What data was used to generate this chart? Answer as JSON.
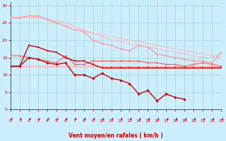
{
  "background_color": "#cceeff",
  "grid_color": "#aadddd",
  "xlabel": "Vent moyen/en rafales ( km/h )",
  "xlabel_color": "#cc0000",
  "tick_color": "#cc0000",
  "arrow_color": "#cc0000",
  "ylim": [
    0,
    31
  ],
  "xlim": [
    0,
    23
  ],
  "yticks": [
    0,
    5,
    10,
    15,
    20,
    25,
    30
  ],
  "xticks": [
    0,
    1,
    2,
    3,
    4,
    5,
    6,
    7,
    8,
    9,
    10,
    11,
    12,
    13,
    14,
    15,
    16,
    17,
    18,
    19,
    20,
    21,
    22,
    23
  ],
  "lines": [
    {
      "x": [
        0,
        1,
        2,
        3,
        4,
        5,
        6,
        7,
        8,
        9,
        10,
        11,
        12,
        13,
        14,
        15,
        16,
        17,
        18,
        19,
        20,
        21,
        22,
        23
      ],
      "y": [
        26.5,
        26.5,
        26.5,
        26.5,
        26,
        25.5,
        25,
        24,
        23,
        22,
        21.5,
        21,
        20.5,
        20,
        19.5,
        19,
        18.5,
        18,
        17.5,
        17,
        16.5,
        16,
        15.5,
        15
      ],
      "color": "#ffbbbb",
      "lw": 0.8,
      "marker": null
    },
    {
      "x": [
        0,
        1,
        2,
        3,
        4,
        5,
        6,
        7,
        8,
        9,
        10,
        11,
        12,
        13,
        14,
        15,
        16,
        17,
        18,
        19,
        20,
        21,
        22,
        23
      ],
      "y": [
        26.5,
        26.5,
        26.5,
        26.5,
        26,
        25.5,
        25,
        24,
        22.5,
        22,
        21,
        20,
        19.5,
        19,
        18.5,
        18,
        17.5,
        17,
        16.5,
        16,
        15.5,
        15,
        15,
        16.5
      ],
      "color": "#ffbbbb",
      "lw": 0.8,
      "marker": null
    },
    {
      "x": [
        0,
        1,
        2,
        3,
        4,
        5,
        6,
        7,
        8,
        9,
        10,
        11,
        12,
        13,
        14,
        15,
        16,
        17,
        18,
        19,
        20,
        21,
        22,
        23
      ],
      "y": [
        26.5,
        26.5,
        27,
        27,
        26,
        25,
        24,
        23,
        22.5,
        20,
        19,
        18.5,
        17.5,
        17,
        18.5,
        18,
        16,
        15.5,
        15,
        14.5,
        14,
        14,
        13.5,
        16.5
      ],
      "color": "#ff9999",
      "lw": 0.9,
      "marker": "D",
      "ms": 1.8
    },
    {
      "x": [
        0,
        1,
        2,
        3,
        4,
        5,
        6,
        7,
        8,
        9,
        10,
        11,
        12,
        13,
        14,
        15,
        16,
        17,
        18,
        19,
        20,
        21,
        22,
        23
      ],
      "y": [
        12.5,
        12.5,
        12.5,
        12.5,
        12.5,
        12.5,
        12.5,
        12.5,
        12.5,
        12.5,
        12.5,
        12.5,
        12.5,
        12.5,
        12.5,
        12.5,
        12.5,
        12.5,
        12.5,
        12.5,
        12.5,
        12.5,
        12.5,
        12.5
      ],
      "color": "#ffaaaa",
      "lw": 0.8,
      "marker": null
    },
    {
      "x": [
        0,
        1,
        2,
        3,
        4,
        5,
        6,
        7,
        8,
        9,
        10,
        11,
        12,
        13,
        14,
        15,
        16,
        17,
        18,
        19,
        20,
        21,
        22,
        23
      ],
      "y": [
        15.5,
        15.5,
        15,
        14.5,
        14,
        13.5,
        15.5,
        13,
        13,
        14,
        14,
        14,
        14,
        14,
        14,
        13.5,
        13.5,
        13,
        13,
        12.5,
        13,
        13.5,
        13,
        12.5
      ],
      "color": "#ff6666",
      "lw": 0.9,
      "marker": "D",
      "ms": 1.8
    },
    {
      "x": [
        0,
        1,
        2,
        3,
        4,
        5,
        6,
        7,
        8,
        9,
        10,
        11,
        12,
        13,
        14,
        15,
        16,
        17,
        18,
        19,
        20,
        21,
        22,
        23
      ],
      "y": [
        12.5,
        12.5,
        18.5,
        18,
        17,
        16.5,
        15,
        14,
        14,
        13,
        12,
        12,
        12,
        12,
        12,
        12,
        12,
        12,
        12,
        12,
        12,
        12,
        12,
        12
      ],
      "color": "#cc0000",
      "lw": 1.0,
      "marker": "s",
      "ms": 1.8
    },
    {
      "x": [
        0,
        1,
        2,
        3,
        4,
        5,
        6,
        7,
        8,
        9,
        10,
        11,
        12,
        13,
        14,
        15,
        16,
        17,
        18,
        19
      ],
      "y": [
        12.5,
        12.5,
        15,
        14.5,
        13.5,
        13,
        13.5,
        10,
        10,
        9,
        10.5,
        9,
        8.5,
        7.5,
        4.5,
        5.5,
        2.5,
        4.5,
        3.5,
        3.0
      ],
      "color": "#cc0000",
      "lw": 1.0,
      "marker": "D",
      "ms": 2.2
    }
  ]
}
